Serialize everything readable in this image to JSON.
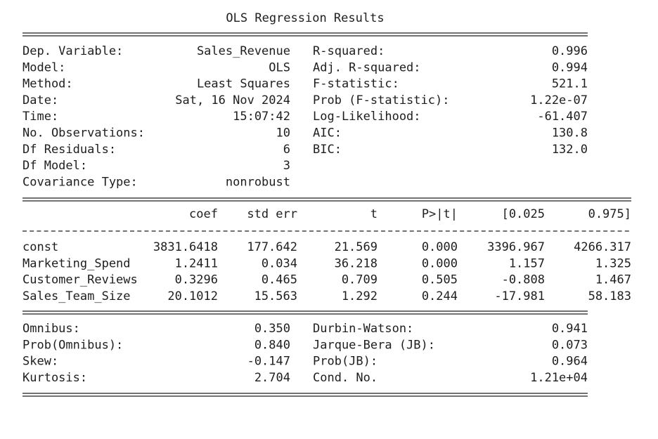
{
  "title": "OLS Regression Results",
  "top": {
    "rows": [
      [
        "Dep. Variable:",
        "Sales_Revenue",
        "R-squared:",
        "0.996"
      ],
      [
        "Model:",
        "OLS",
        "Adj. R-squared:",
        "0.994"
      ],
      [
        "Method:",
        "Least Squares",
        "F-statistic:",
        "521.1"
      ],
      [
        "Date:",
        "Sat, 16 Nov 2024",
        "Prob (F-statistic):",
        "1.22e-07"
      ],
      [
        "Time:",
        "15:07:42",
        "Log-Likelihood:",
        "-61.407"
      ],
      [
        "No. Observations:",
        "10",
        "AIC:",
        "130.8"
      ],
      [
        "Df Residuals:",
        "6",
        "BIC:",
        "132.0"
      ],
      [
        "Df Model:",
        "3"
      ],
      [
        "Covariance Type:",
        "nonrobust"
      ]
    ]
  },
  "coef": {
    "header": [
      "coef",
      "std err",
      "t",
      "P>|t|",
      "[0.025",
      "0.975]"
    ],
    "rows": [
      [
        "const",
        "3831.6418",
        "177.642",
        "21.569",
        "0.000",
        "3396.967",
        "4266.317"
      ],
      [
        "Marketing_Spend",
        "1.2411",
        "0.034",
        "36.218",
        "0.000",
        "1.157",
        "1.325"
      ],
      [
        "Customer_Reviews",
        "0.3296",
        "0.465",
        "0.709",
        "0.505",
        "-0.808",
        "1.467"
      ],
      [
        "Sales_Team_Size",
        "20.1012",
        "15.563",
        "1.292",
        "0.244",
        "-17.981",
        "58.183"
      ]
    ]
  },
  "bottom": {
    "rows": [
      [
        "Omnibus:",
        "0.350",
        "Durbin-Watson:",
        "0.941"
      ],
      [
        "Prob(Omnibus):",
        "0.840",
        "Jarque-Bera (JB):",
        "0.073"
      ],
      [
        "Skew:",
        "-0.147",
        "Prob(JB):",
        "0.964"
      ],
      [
        "Kurtosis:",
        "2.704",
        "Cond. No.",
        "1.21e+04"
      ]
    ]
  }
}
